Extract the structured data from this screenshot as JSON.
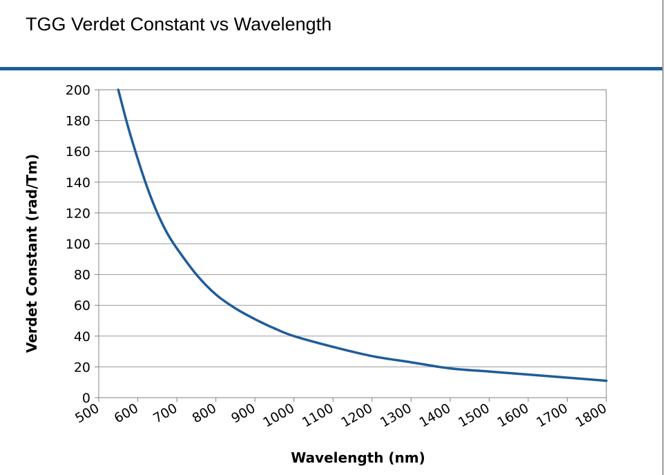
{
  "page": {
    "title": "TGG Verdet Constant vs Wavelength",
    "accent_color": "#1f5c99"
  },
  "chart_data": {
    "type": "line",
    "title": "TGG Verdet Constant vs Wavelength",
    "xlabel": "Wavelength (nm)",
    "ylabel": "Verdet Constant (rad/Tm)",
    "xlim": [
      500,
      1800
    ],
    "ylim": [
      0,
      200
    ],
    "x_ticks": [
      "500",
      "600",
      "700",
      "800",
      "900",
      "1000",
      "1100",
      "1200",
      "1300",
      "1400",
      "1500",
      "1600",
      "1700",
      "1800"
    ],
    "y_ticks": [
      "0",
      "20",
      "40",
      "60",
      "80",
      "100",
      "120",
      "140",
      "160",
      "180",
      "200"
    ],
    "grid": "horizontal",
    "legend": "none",
    "series": [
      {
        "color": "#1f5c99",
        "x": [
          550,
          575,
          600,
          625,
          650,
          675,
          700,
          750,
          800,
          850,
          900,
          950,
          1000,
          1100,
          1200,
          1300,
          1400,
          1500,
          1600,
          1700,
          1800
        ],
        "y": [
          200,
          176,
          155,
          136,
          120,
          107,
          97,
          80,
          67,
          58,
          51,
          45,
          40,
          33,
          27,
          23,
          19,
          17,
          15,
          13,
          11
        ]
      }
    ]
  }
}
